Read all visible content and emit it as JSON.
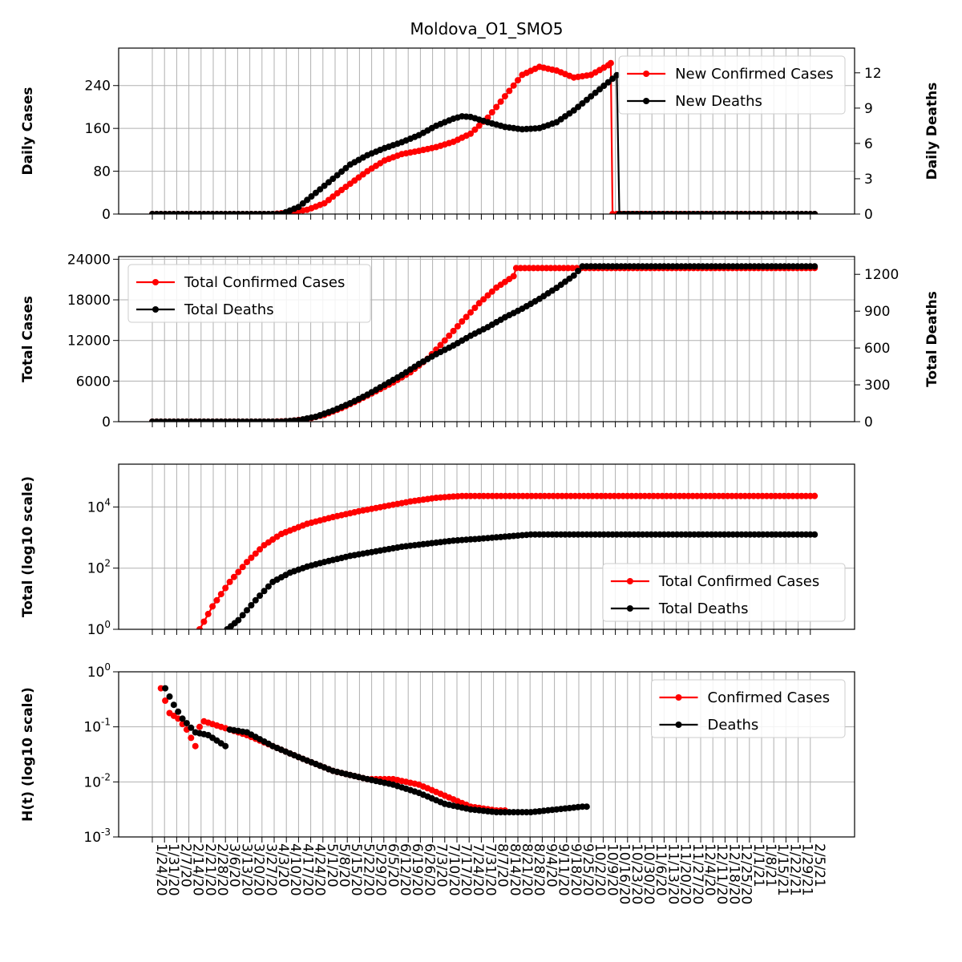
{
  "chart_data": {
    "title": "Moldova_O1_SMO5",
    "x_dates": [
      "1/24/20",
      "1/31/20",
      "2/7/20",
      "2/14/20",
      "2/21/20",
      "2/28/20",
      "3/6/20",
      "3/13/20",
      "3/20/20",
      "3/27/20",
      "4/3/20",
      "4/10/20",
      "4/17/20",
      "4/24/20",
      "5/1/20",
      "5/8/20",
      "5/15/20",
      "5/22/20",
      "5/29/20",
      "6/5/20",
      "6/12/20",
      "6/19/20",
      "6/26/20",
      "7/3/20",
      "7/10/20",
      "7/17/20",
      "7/24/20",
      "7/31/20",
      "8/7/20",
      "8/14/20",
      "8/21/20",
      "8/28/20",
      "9/4/20",
      "9/11/20",
      "9/18/20",
      "9/25/20",
      "10/2/20",
      "10/9/20",
      "10/16/20",
      "10/23/20",
      "10/30/20",
      "11/6/20",
      "11/13/20",
      "11/20/20",
      "11/27/20",
      "12/4/20",
      "12/11/20",
      "12/18/20",
      "12/25/20",
      "1/1/21",
      "1/8/21",
      "1/15/21",
      "1/22/21",
      "1/29/21",
      "2/5/21"
    ],
    "panels": [
      {
        "type": "line",
        "ylabel": "Daily Cases",
        "ylabel_right": "Daily Deaths",
        "yticks": [
          "0",
          "80",
          "160",
          "240"
        ],
        "ylim": [
          0,
          310
        ],
        "yticks_right": [
          "0",
          "3",
          "6",
          "9",
          "12"
        ],
        "ylim_right": [
          0,
          14.1
        ],
        "legend": {
          "position": "upper right",
          "entries": [
            "New Confirmed Cases",
            "New Deaths"
          ]
        },
        "series": [
          {
            "name": "New Confirmed Cases",
            "color": "#ff0000",
            "axis": "left",
            "points": [
              [
                0,
                0
              ],
              [
                14,
                0
              ],
              [
                16,
                3
              ],
              [
                18,
                8
              ],
              [
                20,
                20
              ],
              [
                22,
                45
              ],
              [
                25,
                80
              ],
              [
                27,
                100
              ],
              [
                29,
                112
              ],
              [
                31,
                118
              ],
              [
                33,
                125
              ],
              [
                35,
                135
              ],
              [
                37,
                150
              ],
              [
                39,
                180
              ],
              [
                41,
                220
              ],
              [
                43,
                260
              ],
              [
                45,
                275
              ],
              [
                47,
                268
              ],
              [
                49,
                255
              ],
              [
                51,
                260
              ],
              [
                53,
                278
              ],
              [
                53.3,
                282
              ],
              [
                53.5,
                0
              ],
              [
                77,
                0
              ]
            ]
          },
          {
            "name": "New Deaths",
            "color": "#000000",
            "axis": "left_scaled_right",
            "points": [
              [
                0,
                0
              ],
              [
                15,
                0
              ],
              [
                17,
                0.6
              ],
              [
                19,
                1.8
              ],
              [
                21,
                3.0
              ],
              [
                23,
                4.2
              ],
              [
                25,
                5.0
              ],
              [
                27,
                5.6
              ],
              [
                29,
                6.1
              ],
              [
                31,
                6.7
              ],
              [
                33,
                7.5
              ],
              [
                35,
                8.1
              ],
              [
                36,
                8.3
              ],
              [
                37,
                8.25
              ],
              [
                39,
                7.8
              ],
              [
                41,
                7.4
              ],
              [
                43,
                7.2
              ],
              [
                45,
                7.3
              ],
              [
                47,
                7.8
              ],
              [
                49,
                8.8
              ],
              [
                51,
                10.0
              ],
              [
                53,
                11.2
              ],
              [
                54,
                11.8
              ],
              [
                54.3,
                0
              ],
              [
                77,
                0
              ]
            ]
          }
        ]
      },
      {
        "type": "line",
        "ylabel": "Total Cases",
        "ylabel_right": "Total Deaths",
        "yticks": [
          "0",
          "6000",
          "12000",
          "18000",
          "24000"
        ],
        "ylim": [
          0,
          24400
        ],
        "yticks_right": [
          "0",
          "300",
          "600",
          "900",
          "1200"
        ],
        "ylim_right": [
          0,
          1345
        ],
        "legend": {
          "position": "upper left",
          "entries": [
            "Total Confirmed Cases",
            "Total Deaths"
          ]
        },
        "series": [
          {
            "name": "Total Confirmed Cases",
            "color": "#ff0000",
            "points": [
              [
                0,
                0
              ],
              [
                14,
                0
              ],
              [
                16,
                100
              ],
              [
                18,
                400
              ],
              [
                20,
                1000
              ],
              [
                22,
                2000
              ],
              [
                24,
                3200
              ],
              [
                26,
                4500
              ],
              [
                28,
                5800
              ],
              [
                30,
                7300
              ],
              [
                32,
                9300
              ],
              [
                34,
                12000
              ],
              [
                36,
                14800
              ],
              [
                38,
                17500
              ],
              [
                40,
                19800
              ],
              [
                42,
                21500
              ],
              [
                42.3,
                22700
              ],
              [
                77,
                22700
              ]
            ]
          },
          {
            "name": "Total Deaths",
            "color": "#000000",
            "points": [
              [
                0,
                0
              ],
              [
                15,
                0
              ],
              [
                17,
                12
              ],
              [
                19,
                40
              ],
              [
                21,
                90
              ],
              [
                23,
                150
              ],
              [
                25,
                220
              ],
              [
                27,
                300
              ],
              [
                29,
                380
              ],
              [
                31,
                470
              ],
              [
                33,
                550
              ],
              [
                35,
                620
              ],
              [
                37,
                700
              ],
              [
                39,
                770
              ],
              [
                41,
                850
              ],
              [
                43,
                920
              ],
              [
                45,
                1000
              ],
              [
                47,
                1090
              ],
              [
                49,
                1190
              ],
              [
                50,
                1265
              ],
              [
                77,
                1265
              ]
            ]
          }
        ]
      },
      {
        "type": "line",
        "ylabel": "Total (log10 scale)",
        "log_scale": true,
        "yticks": [
          "10^0",
          "10^2",
          "10^4"
        ],
        "ylim_log10": [
          0,
          5.4
        ],
        "legend": {
          "position": "lower right",
          "entries": [
            "Total Confirmed Cases",
            "Total Deaths"
          ]
        },
        "series": [
          {
            "name": "Total Confirmed Cases",
            "color": "#ff0000",
            "points_log10": [
              [
                5.5,
                0
              ],
              [
                7,
                0.75
              ],
              [
                9,
                1.55
              ],
              [
                11,
                2.2
              ],
              [
                13,
                2.75
              ],
              [
                15,
                3.12
              ],
              [
                18,
                3.45
              ],
              [
                21,
                3.67
              ],
              [
                24,
                3.86
              ],
              [
                27,
                4.02
              ],
              [
                30,
                4.18
              ],
              [
                33,
                4.3
              ],
              [
                36,
                4.36
              ],
              [
                37,
                4.36
              ],
              [
                77,
                4.36
              ]
            ]
          },
          {
            "name": "Total Deaths",
            "color": "#000000",
            "points_log10": [
              [
                8.7,
                0
              ],
              [
                10,
                0.3
              ],
              [
                12,
                0.95
              ],
              [
                14,
                1.55
              ],
              [
                16,
                1.85
              ],
              [
                18,
                2.05
              ],
              [
                20,
                2.2
              ],
              [
                23,
                2.4
              ],
              [
                26,
                2.55
              ],
              [
                29,
                2.7
              ],
              [
                32,
                2.8
              ],
              [
                35,
                2.9
              ],
              [
                38,
                2.96
              ],
              [
                41,
                3.03
              ],
              [
                44,
                3.1
              ],
              [
                50,
                3.1
              ],
              [
                77,
                3.1
              ]
            ]
          }
        ]
      },
      {
        "type": "scatter",
        "ylabel": "H(t) (log10 scale)",
        "log_scale": true,
        "yticks": [
          "10^-3",
          "10^-2",
          "10^-1",
          "10^0"
        ],
        "ylim_log10": [
          -3,
          0
        ],
        "legend": {
          "position": "upper right",
          "entries": [
            "Confirmed Cases",
            "Deaths"
          ]
        },
        "series": [
          {
            "name": "Confirmed Cases",
            "color": "#ff0000",
            "points_log10": [
              [
                1,
                -0.3
              ],
              [
                2,
                -0.75
              ],
              [
                3,
                -0.85
              ],
              [
                4,
                -1.05
              ],
              [
                5,
                -1.35
              ],
              [
                5.5,
                -1.0
              ],
              [
                6,
                -0.9
              ],
              [
                7,
                -0.95
              ],
              [
                9,
                -1.05
              ],
              [
                11,
                -1.15
              ],
              [
                14,
                -1.35
              ],
              [
                17,
                -1.55
              ],
              [
                21,
                -1.8
              ],
              [
                25,
                -1.95
              ],
              [
                28,
                -1.95
              ],
              [
                31,
                -2.05
              ],
              [
                34,
                -2.25
              ],
              [
                37,
                -2.45
              ],
              [
                40,
                -2.52
              ],
              [
                41,
                -2.52
              ]
            ]
          },
          {
            "name": "Deaths",
            "color": "#000000",
            "points_log10": [
              [
                1.5,
                -0.3
              ],
              [
                2.5,
                -0.6
              ],
              [
                3.5,
                -0.85
              ],
              [
                5,
                -1.1
              ],
              [
                6.5,
                -1.15
              ],
              [
                8,
                -1.3
              ],
              [
                8.5,
                -1.35
              ],
              [
                9,
                -1.05
              ],
              [
                11,
                -1.1
              ],
              [
                14,
                -1.35
              ],
              [
                17,
                -1.55
              ],
              [
                21,
                -1.8
              ],
              [
                25,
                -1.95
              ],
              [
                28,
                -2.05
              ],
              [
                31,
                -2.2
              ],
              [
                34,
                -2.4
              ],
              [
                37,
                -2.5
              ],
              [
                40,
                -2.55
              ],
              [
                44,
                -2.55
              ],
              [
                50,
                -2.45
              ],
              [
                50.5,
                -2.45
              ]
            ]
          }
        ]
      }
    ]
  }
}
